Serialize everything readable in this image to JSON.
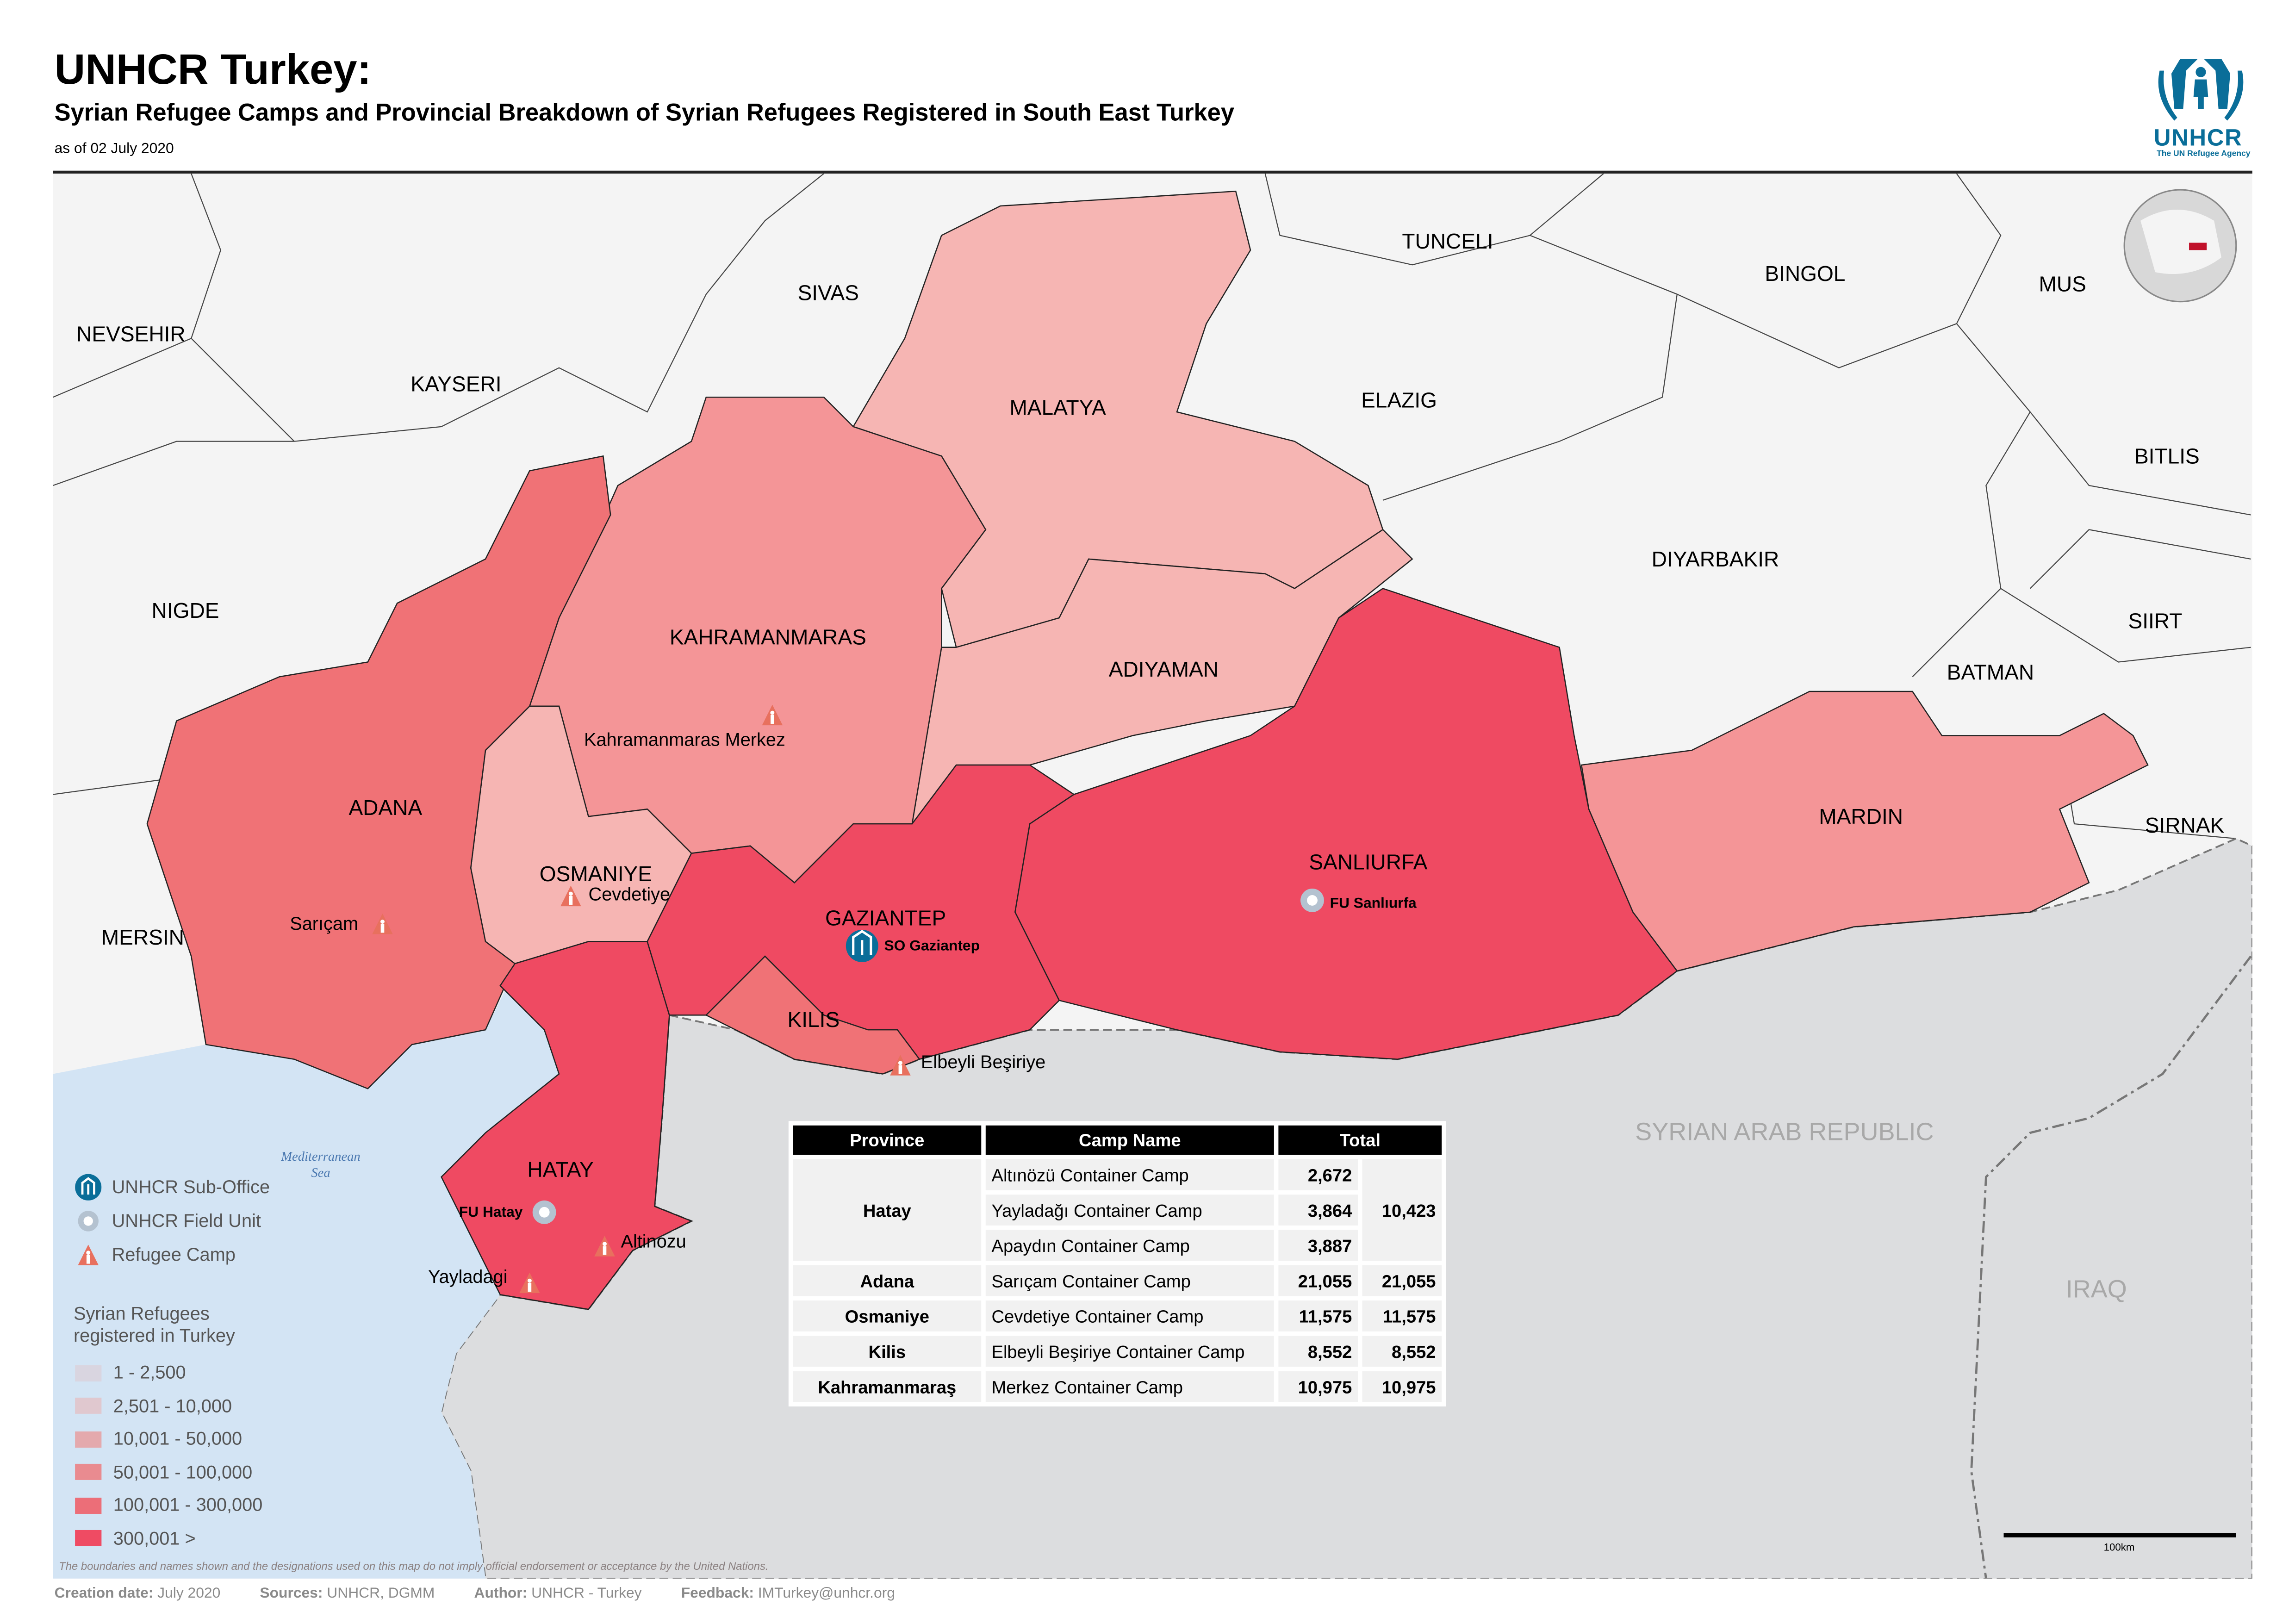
{
  "header": {
    "title": "UNHCR Turkey:",
    "subtitle": "Syrian Refugee Camps and Provincial Breakdown of Syrian Refugees Registered in South East Turkey",
    "as_of": "as of 02 July 2020",
    "logo_text": "UNHCR",
    "logo_tagline": "The UN Refugee Agency"
  },
  "colors": {
    "brand_blue": "#0a6e99",
    "class_1_2500": "#d9d5e0",
    "class_2501_10000": "#e0c8cf",
    "class_10001_50000": "#f6b5b3",
    "class_50001_100000": "#f49597",
    "class_100001_300000": "#f07276",
    "class_300001_plus": "#ef4a62",
    "other_land": "#f4f4f4",
    "syria_iraq": "#dcdddf",
    "sea": "#d3e4f4",
    "camp_icon": "#e8705e"
  },
  "map": {
    "other_provinces": [
      "NEVSEHIR",
      "KAYSERI",
      "SIVAS",
      "TUNCELI",
      "BINGOL",
      "MUS",
      "ELAZIG",
      "BITLIS",
      "NIGDE",
      "DIYARBAKIR",
      "SIIRT",
      "BATMAN",
      "SIRNAK",
      "MERSIN"
    ],
    "provinces": {
      "malatya": "MALATYA",
      "adiyaman": "ADIYAMAN",
      "kahramanmaras": "KAHRAMANMARAS",
      "osmaniye": "OSMANIYE",
      "adana": "ADANA",
      "hatay": "HATAY",
      "gaziantep": "GAZIANTEP",
      "kilis": "KILIS",
      "sanliurfa": "SANLIURFA",
      "mardin": "MARDIN"
    },
    "countries": {
      "syria": "SYRIAN ARAB REPUBLIC",
      "iraq": "IRAQ"
    },
    "sea_label": [
      "Mediterranean",
      "Sea"
    ],
    "camps": [
      "Kahramanmaras Merkez",
      "Cevdetiye",
      "Sarıçam",
      "Elbeyli Beşiriye",
      "Altinozu",
      "Yayladagi"
    ],
    "offices": {
      "sub_office": "SO Gaziantep",
      "field_units": [
        "FU Sanlıurfa",
        "FU Hatay"
      ]
    },
    "scale_label": "100km",
    "disclaimer": "The boundaries and names shown and the designations used on this map do not imply official endorsement or acceptance by the United Nations."
  },
  "legend": {
    "symbols": [
      {
        "icon": "unhcr-office-icon",
        "label": "UNHCR Sub-Office"
      },
      {
        "icon": "field-unit-icon",
        "label": "UNHCR Field Unit"
      },
      {
        "icon": "refugee-camp-icon",
        "label": "Refugee Camp"
      }
    ],
    "choropleth_title": [
      "Syrian Refugees",
      "registered in Turkey"
    ],
    "classes": [
      "1 - 2,500",
      "2,501 - 10,000",
      "10,001 - 50,000",
      "50,001 - 100,000",
      "100,001 - 300,000",
      "300,001 >"
    ]
  },
  "table": {
    "headers": [
      "Province",
      "Camp Name",
      "Total"
    ],
    "rows": [
      {
        "province": "Hatay",
        "total": "10,423",
        "camps": [
          {
            "name": "Altınözü Container Camp",
            "value": "2,672"
          },
          {
            "name": "Yayladağı Container Camp",
            "value": "3,864"
          },
          {
            "name": "Apaydın Container Camp",
            "value": "3,887"
          }
        ]
      },
      {
        "province": "Adana",
        "total": "21,055",
        "camps": [
          {
            "name": "Sarıçam Container Camp",
            "value": "21,055"
          }
        ]
      },
      {
        "province": "Osmaniye",
        "total": "11,575",
        "camps": [
          {
            "name": "Cevdetiye Container Camp",
            "value": "11,575"
          }
        ]
      },
      {
        "province": "Kilis",
        "total": "8,552",
        "camps": [
          {
            "name": "Elbeyli Beşiriye Container Camp",
            "value": "8,552"
          }
        ]
      },
      {
        "province": "Kahramanmaraş",
        "total": "10,975",
        "camps": [
          {
            "name": "Merkez Container Camp",
            "value": "10,975"
          }
        ]
      }
    ]
  },
  "footer": {
    "creation_label": "Creation date:",
    "creation_value": "July 2020",
    "sources_label": "Sources:",
    "sources_value": "UNHCR, DGMM",
    "author_label": "Author:",
    "author_value": "UNHCR - Turkey",
    "feedback_label": "Feedback:",
    "feedback_value": "IMTurkey@unhcr.org"
  }
}
